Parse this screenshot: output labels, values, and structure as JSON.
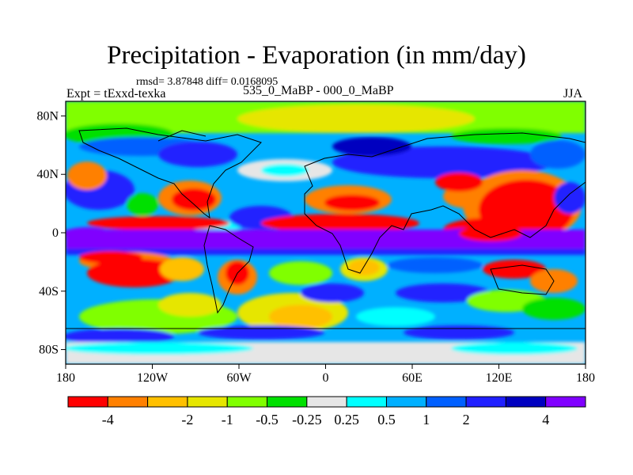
{
  "title": "Precipitation - Evaporation (in mm/day)",
  "stats": "rmsd= 3.87848 diff= 0.0168095",
  "experiment": "Expt = tExxd-texka",
  "comparison": "535_0_MaBP - 000_0_MaBP",
  "season": "JJA",
  "lat_ticks": [
    {
      "value": 80,
      "label": "80N"
    },
    {
      "value": 40,
      "label": "40N"
    },
    {
      "value": 0,
      "label": "0"
    },
    {
      "value": -40,
      "label": "40S"
    },
    {
      "value": -80,
      "label": "80S"
    }
  ],
  "lon_ticks": [
    {
      "value": -180,
      "label": "180"
    },
    {
      "value": -120,
      "label": "120W"
    },
    {
      "value": -60,
      "label": "60W"
    },
    {
      "value": 0,
      "label": "0"
    },
    {
      "value": 60,
      "label": "60E"
    },
    {
      "value": 120,
      "label": "120E"
    },
    {
      "value": 180,
      "label": "180"
    }
  ],
  "colorbar": {
    "colors": [
      "#ff0000",
      "#ff8000",
      "#ffc000",
      "#e6e600",
      "#80ff00",
      "#00e000",
      "#e6e6e6",
      "#00ffff",
      "#00b0ff",
      "#0060ff",
      "#2020ff",
      "#0000c0",
      "#8000ff"
    ],
    "labels": [
      "-4",
      "-2",
      "-1",
      "-0.5",
      "-0.25",
      "0.25",
      "0.5",
      "1",
      "2",
      "4"
    ],
    "label_boundaries": [
      1,
      3,
      4,
      5,
      6,
      7,
      8,
      9,
      10,
      12
    ]
  }
}
